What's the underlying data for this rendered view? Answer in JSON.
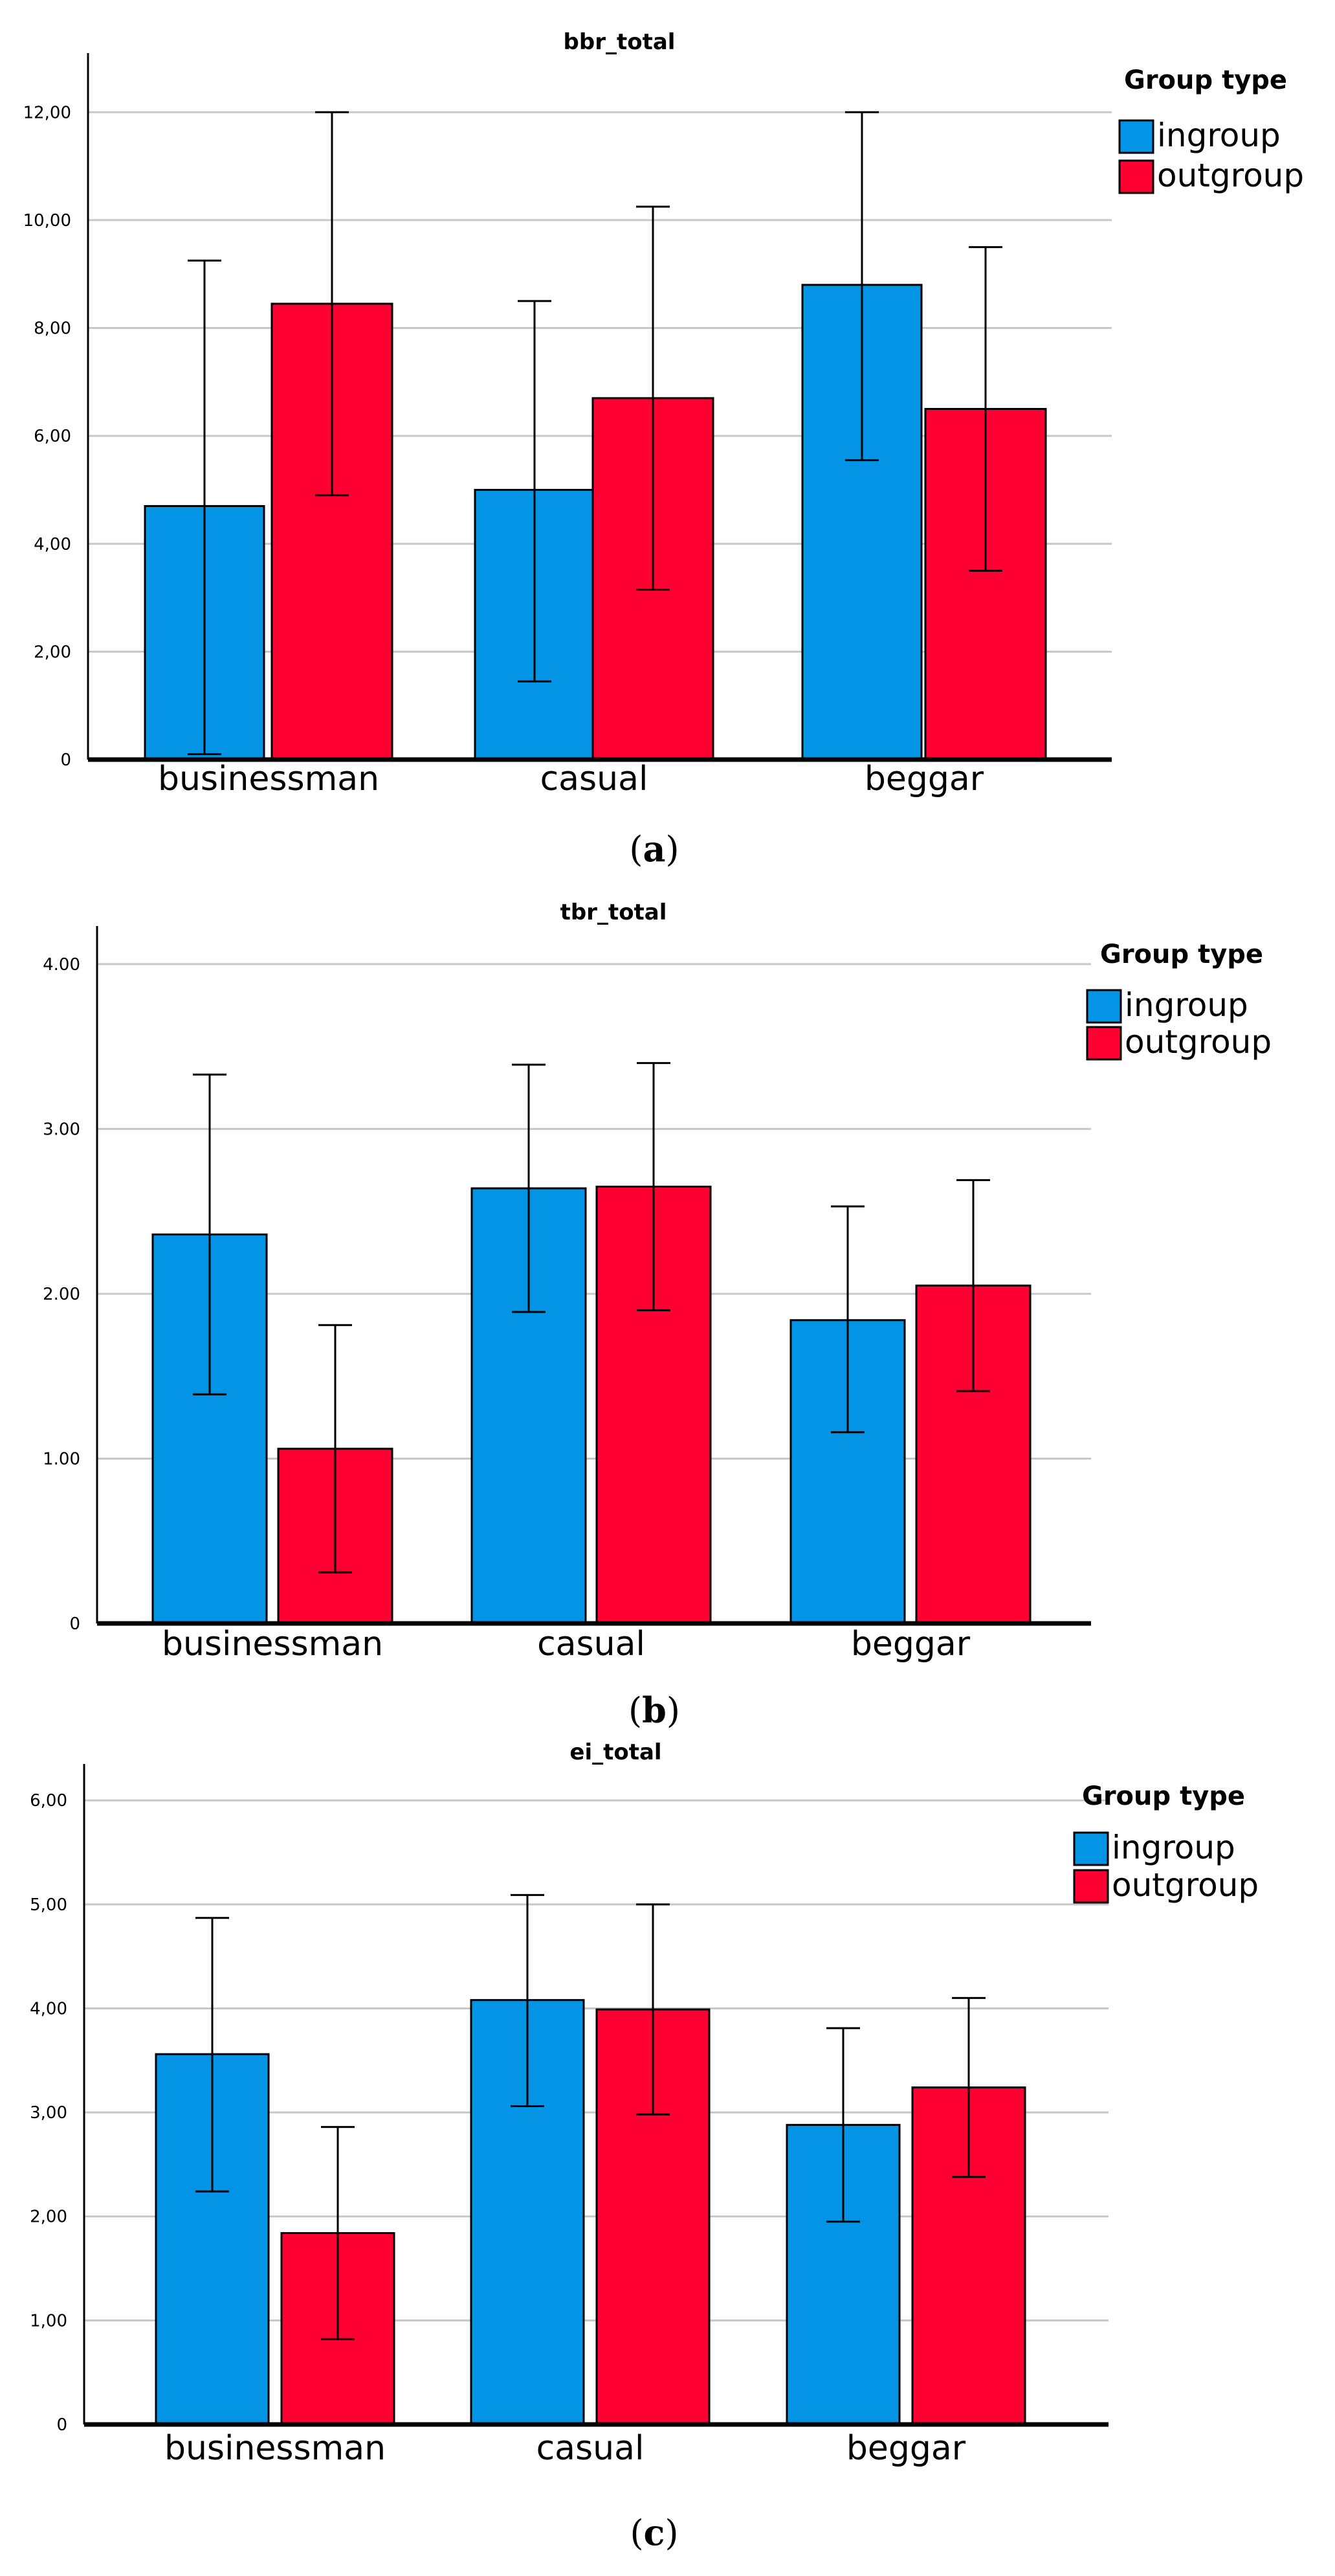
{
  "legend": {
    "title": "Group type",
    "items": [
      {
        "label": "ingroup",
        "color": "#0394e6"
      },
      {
        "label": "outgroup",
        "color": "#ff0033"
      }
    ]
  },
  "chart_data": [
    {
      "type": "bar",
      "title": "bbr_total",
      "caption": "(a)",
      "caption_letter": "a",
      "categories": [
        "businessman",
        "casual",
        "beggar"
      ],
      "ylim": [
        0,
        13.0
      ],
      "yticks": [
        0,
        2,
        4,
        6,
        8,
        10,
        12
      ],
      "ytick_labels": [
        "0",
        "2,00",
        "4,00",
        "6,00",
        "8,00",
        "10,00",
        "12,00"
      ],
      "grid": true,
      "legend_position": "top-right",
      "series": [
        {
          "name": "ingroup",
          "values": [
            4.7,
            5.0,
            8.8
          ],
          "err_low": [
            0.1,
            1.45,
            5.55
          ],
          "err_high": [
            9.25,
            8.5,
            12.0
          ]
        },
        {
          "name": "outgroup",
          "values": [
            8.45,
            6.7,
            6.5
          ],
          "err_low": [
            4.9,
            3.15,
            3.5
          ],
          "err_high": [
            12.0,
            10.25,
            9.5
          ]
        }
      ]
    },
    {
      "type": "bar",
      "title": "tbr_total",
      "caption": "(b)",
      "caption_letter": "b",
      "categories": [
        "businessman",
        "casual",
        "beggar"
      ],
      "ylim": [
        0,
        4.2
      ],
      "yticks": [
        0,
        1,
        2,
        3,
        4
      ],
      "ytick_labels": [
        "0",
        "1.00",
        "2.00",
        "3.00",
        "4.00"
      ],
      "grid": true,
      "legend_position": "top-right",
      "series": [
        {
          "name": "ingroup",
          "values": [
            2.36,
            2.64,
            1.84
          ],
          "err_low": [
            1.39,
            1.89,
            1.16
          ],
          "err_high": [
            3.33,
            3.39,
            2.53
          ]
        },
        {
          "name": "outgroup",
          "values": [
            1.06,
            2.65,
            2.05
          ],
          "err_low": [
            0.31,
            1.9,
            1.41
          ],
          "err_high": [
            1.81,
            3.4,
            2.69
          ]
        }
      ]
    },
    {
      "type": "bar",
      "title": "ei_total",
      "caption": "(c)",
      "caption_letter": "c",
      "categories": [
        "businessman",
        "casual",
        "beggar"
      ],
      "ylim": [
        0,
        6.3
      ],
      "yticks": [
        0,
        1,
        2,
        3,
        4,
        5,
        6
      ],
      "ytick_labels": [
        "0",
        "1,00",
        "2,00",
        "3,00",
        "4,00",
        "5,00",
        "6,00"
      ],
      "grid": true,
      "legend_position": "top-right",
      "series": [
        {
          "name": "ingroup",
          "values": [
            3.56,
            4.08,
            2.88
          ],
          "err_low": [
            2.24,
            3.06,
            1.95
          ],
          "err_high": [
            4.87,
            5.09,
            3.81
          ]
        },
        {
          "name": "outgroup",
          "values": [
            1.84,
            3.99,
            3.24
          ],
          "err_low": [
            0.82,
            2.98,
            2.38
          ],
          "err_high": [
            2.86,
            5.0,
            4.1
          ]
        }
      ]
    }
  ]
}
